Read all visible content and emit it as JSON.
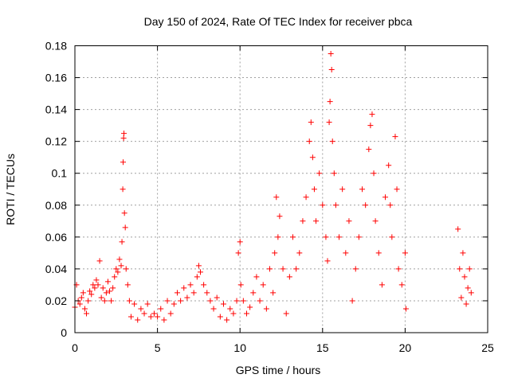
{
  "chart_data": {
    "type": "scatter",
    "title": "Day 150 of 2024, Rate Of TEC Index for receiver pbca",
    "xlabel": "GPS time / hours",
    "ylabel": "ROTI / TECUs",
    "xlim": [
      0,
      25
    ],
    "ylim": [
      0,
      0.18
    ],
    "xticks": [
      0,
      5,
      10,
      15,
      20,
      25
    ],
    "xtick_labels": [
      "0",
      "5",
      "10",
      "15",
      "20",
      "25"
    ],
    "yticks": [
      0,
      0.02,
      0.04,
      0.06,
      0.08,
      0.1,
      0.12,
      0.14,
      0.16,
      0.18
    ],
    "ytick_labels": [
      "0",
      "0.02",
      "0.04",
      "0.06",
      "0.08",
      "0.1",
      "0.12",
      "0.14",
      "0.16",
      "0.18"
    ],
    "grid": true,
    "marker": "plus",
    "color": "#ff0000",
    "series": [
      {
        "points": [
          [
            0.0,
            0.016
          ],
          [
            0.1,
            0.03
          ],
          [
            0.2,
            0.02
          ],
          [
            0.3,
            0.018
          ],
          [
            0.4,
            0.022
          ],
          [
            0.5,
            0.025
          ],
          [
            0.6,
            0.015
          ],
          [
            0.7,
            0.012
          ],
          [
            0.8,
            0.02
          ],
          [
            0.9,
            0.026
          ],
          [
            1.0,
            0.024
          ],
          [
            1.1,
            0.03
          ],
          [
            1.2,
            0.028
          ],
          [
            1.3,
            0.033
          ],
          [
            1.4,
            0.03
          ],
          [
            1.5,
            0.045
          ],
          [
            1.6,
            0.022
          ],
          [
            1.7,
            0.028
          ],
          [
            1.8,
            0.02
          ],
          [
            1.9,
            0.025
          ],
          [
            2.0,
            0.032
          ],
          [
            2.1,
            0.026
          ],
          [
            2.2,
            0.02
          ],
          [
            2.3,
            0.028
          ],
          [
            2.4,
            0.035
          ],
          [
            2.5,
            0.04
          ],
          [
            2.6,
            0.038
          ],
          [
            2.7,
            0.046
          ],
          [
            2.8,
            0.042
          ],
          [
            2.85,
            0.057
          ],
          [
            2.9,
            0.09
          ],
          [
            2.92,
            0.107
          ],
          [
            2.95,
            0.122
          ],
          [
            2.97,
            0.125
          ],
          [
            3.0,
            0.075
          ],
          [
            3.05,
            0.066
          ],
          [
            3.1,
            0.04
          ],
          [
            3.2,
            0.03
          ],
          [
            3.3,
            0.02
          ],
          [
            3.4,
            0.01
          ],
          [
            3.6,
            0.018
          ],
          [
            3.8,
            0.008
          ],
          [
            4.0,
            0.015
          ],
          [
            4.2,
            0.012
          ],
          [
            4.4,
            0.018
          ],
          [
            4.6,
            0.01
          ],
          [
            4.8,
            0.012
          ],
          [
            5.0,
            0.01
          ],
          [
            5.2,
            0.015
          ],
          [
            5.4,
            0.008
          ],
          [
            5.6,
            0.02
          ],
          [
            5.8,
            0.012
          ],
          [
            6.0,
            0.018
          ],
          [
            6.2,
            0.025
          ],
          [
            6.4,
            0.02
          ],
          [
            6.6,
            0.028
          ],
          [
            6.8,
            0.022
          ],
          [
            7.0,
            0.03
          ],
          [
            7.2,
            0.025
          ],
          [
            7.4,
            0.035
          ],
          [
            7.5,
            0.042
          ],
          [
            7.6,
            0.038
          ],
          [
            7.8,
            0.03
          ],
          [
            8.0,
            0.025
          ],
          [
            8.2,
            0.02
          ],
          [
            8.4,
            0.015
          ],
          [
            8.6,
            0.022
          ],
          [
            8.8,
            0.01
          ],
          [
            9.0,
            0.018
          ],
          [
            9.2,
            0.008
          ],
          [
            9.4,
            0.015
          ],
          [
            9.6,
            0.012
          ],
          [
            9.8,
            0.02
          ],
          [
            9.9,
            0.05
          ],
          [
            10.0,
            0.057
          ],
          [
            10.05,
            0.03
          ],
          [
            10.2,
            0.02
          ],
          [
            10.4,
            0.012
          ],
          [
            10.6,
            0.016
          ],
          [
            10.8,
            0.025
          ],
          [
            11.0,
            0.035
          ],
          [
            11.2,
            0.02
          ],
          [
            11.4,
            0.03
          ],
          [
            11.6,
            0.015
          ],
          [
            11.8,
            0.04
          ],
          [
            12.0,
            0.025
          ],
          [
            12.1,
            0.05
          ],
          [
            12.2,
            0.085
          ],
          [
            12.3,
            0.06
          ],
          [
            12.4,
            0.073
          ],
          [
            12.6,
            0.04
          ],
          [
            12.8,
            0.012
          ],
          [
            13.0,
            0.035
          ],
          [
            13.2,
            0.06
          ],
          [
            13.4,
            0.04
          ],
          [
            13.6,
            0.05
          ],
          [
            13.8,
            0.07
          ],
          [
            14.0,
            0.085
          ],
          [
            14.2,
            0.12
          ],
          [
            14.3,
            0.132
          ],
          [
            14.4,
            0.11
          ],
          [
            14.5,
            0.09
          ],
          [
            14.6,
            0.07
          ],
          [
            14.8,
            0.1
          ],
          [
            15.0,
            0.08
          ],
          [
            15.2,
            0.06
          ],
          [
            15.3,
            0.045
          ],
          [
            15.4,
            0.132
          ],
          [
            15.45,
            0.145
          ],
          [
            15.5,
            0.175
          ],
          [
            15.55,
            0.165
          ],
          [
            15.6,
            0.12
          ],
          [
            15.7,
            0.1
          ],
          [
            15.8,
            0.08
          ],
          [
            16.0,
            0.06
          ],
          [
            16.2,
            0.09
          ],
          [
            16.4,
            0.05
          ],
          [
            16.6,
            0.07
          ],
          [
            16.8,
            0.02
          ],
          [
            17.0,
            0.04
          ],
          [
            17.2,
            0.06
          ],
          [
            17.4,
            0.09
          ],
          [
            17.6,
            0.08
          ],
          [
            17.8,
            0.115
          ],
          [
            17.9,
            0.13
          ],
          [
            18.0,
            0.137
          ],
          [
            18.1,
            0.1
          ],
          [
            18.2,
            0.07
          ],
          [
            18.4,
            0.05
          ],
          [
            18.6,
            0.03
          ],
          [
            18.8,
            0.085
          ],
          [
            19.0,
            0.105
          ],
          [
            19.1,
            0.08
          ],
          [
            19.2,
            0.06
          ],
          [
            19.4,
            0.123
          ],
          [
            19.5,
            0.09
          ],
          [
            19.6,
            0.04
          ],
          [
            19.8,
            0.03
          ],
          [
            20.0,
            0.05
          ],
          [
            20.05,
            0.015
          ],
          [
            23.2,
            0.065
          ],
          [
            23.3,
            0.04
          ],
          [
            23.4,
            0.022
          ],
          [
            23.5,
            0.05
          ],
          [
            23.6,
            0.035
          ],
          [
            23.7,
            0.018
          ],
          [
            23.8,
            0.028
          ],
          [
            23.9,
            0.04
          ],
          [
            24.0,
            0.025
          ]
        ]
      }
    ]
  }
}
